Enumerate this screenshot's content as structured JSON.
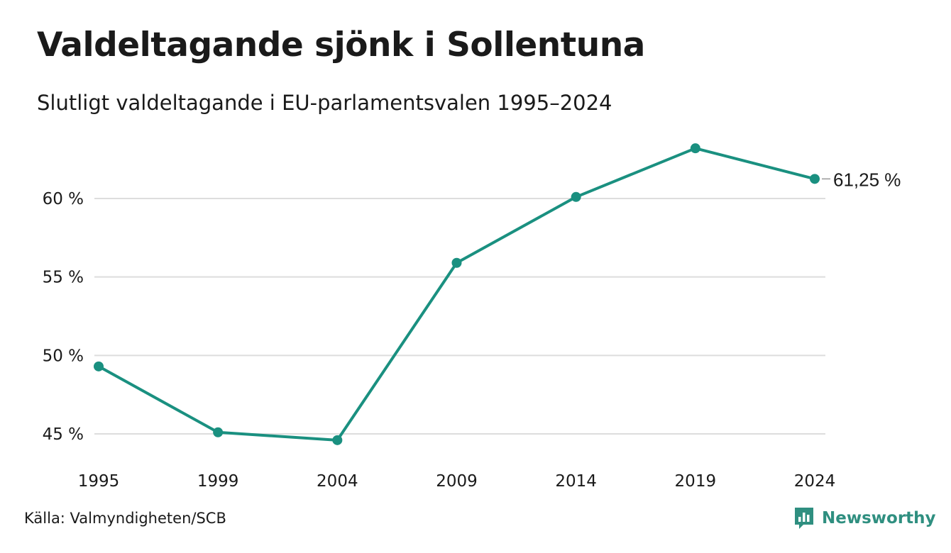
{
  "title": "Valdeltagande sjönk i Sollentuna",
  "subtitle": "Slutligt valdeltagande i EU-parlamentsvalen 1995–2024",
  "source": "Källa: Valmyndigheten/SCB",
  "brand": {
    "name": "Newsworthy",
    "icon": "newsworthy-logo-icon",
    "color": "#2f8f80"
  },
  "chart_data": {
    "type": "line",
    "x": [
      "1995",
      "1999",
      "2004",
      "2009",
      "2014",
      "2019",
      "2024"
    ],
    "series": [
      {
        "values": [
          49.3,
          45.1,
          44.6,
          55.9,
          60.1,
          63.2,
          61.25
        ],
        "color": "#1a9080"
      }
    ],
    "yticks": [
      45,
      50,
      55,
      60
    ],
    "ytick_labels": [
      "45 %",
      "50 %",
      "55 %",
      "60 %"
    ],
    "ylim": [
      42.5,
      64.5
    ],
    "grid": true,
    "end_label": "61,25 %",
    "gridline_color": "#dddddd"
  }
}
